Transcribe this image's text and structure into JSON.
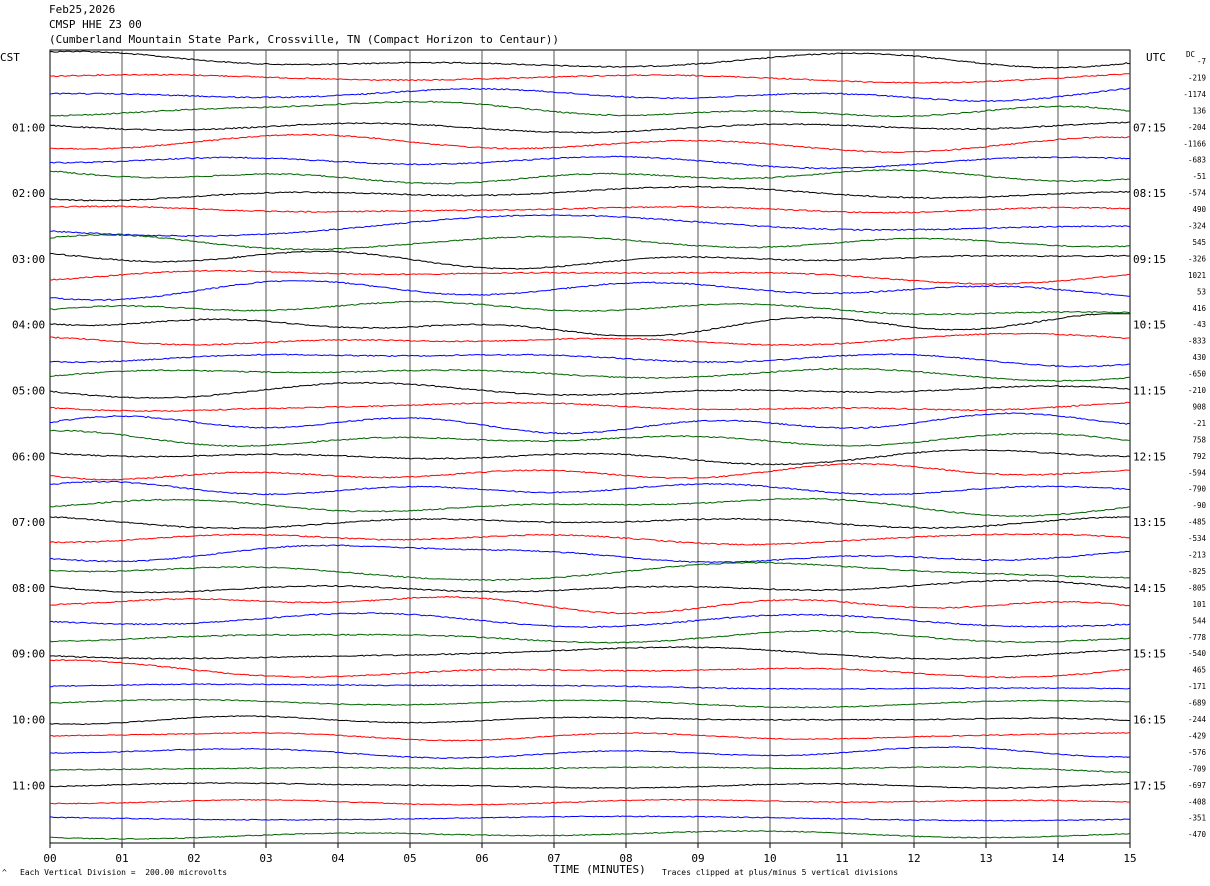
{
  "header": {
    "date": "Feb25,2026",
    "channel": "CMSP HHE Z3 00",
    "station": "(Cumberland Mountain State Park, Crossville, TN (Compact Horizon to Centaur))"
  },
  "labels": {
    "left_zone": "CST",
    "right_zone": "UTC",
    "dc": "DC",
    "xlabel": "TIME (MINUTES)",
    "scale_note": "Each Vertical Division =  200.00 microvolts",
    "clip_note": "Traces clipped at plus/minus 5 vertical divisions",
    "corner_mark": "^"
  },
  "colors": {
    "trace_cycle": [
      "#000000",
      "#ff0000",
      "#0000ff",
      "#006400"
    ],
    "grid": "#000000",
    "background": "#ffffff"
  },
  "chart_data": {
    "type": "line",
    "title": "CMSP HHE Z3 00",
    "xlabel": "TIME (MINUTES)",
    "x_ticks": [
      "00",
      "01",
      "02",
      "03",
      "04",
      "05",
      "06",
      "07",
      "08",
      "09",
      "10",
      "11",
      "12",
      "13",
      "14",
      "15"
    ],
    "xlim": [
      0,
      15
    ],
    "hour_labels_left": [
      "01:00",
      "02:00",
      "03:00",
      "04:00",
      "05:00",
      "06:00",
      "07:00",
      "08:00",
      "09:00",
      "10:00",
      "11:00"
    ],
    "hour_labels_right": [
      "07:15",
      "08:15",
      "09:15",
      "10:15",
      "11:15",
      "12:15",
      "13:15",
      "14:15",
      "15:15",
      "16:15",
      "17:15"
    ],
    "trace_count": 48,
    "dc_offsets": [
      "-7",
      "-219",
      "-1174",
      "136",
      "-204",
      "-1166",
      "-683",
      "-51",
      "-574",
      "490",
      "-324",
      "545",
      "-326",
      "1021",
      "53",
      "416",
      "-43",
      "-833",
      "430",
      "-650",
      "-210",
      "908",
      "-21",
      "758",
      "792",
      "-594",
      "-790",
      "-90",
      "-485",
      "-534",
      "-213",
      "-825",
      "-805",
      "101",
      "544",
      "-778",
      "-540",
      "465",
      "-171",
      "-689",
      "-244",
      "-429",
      "-576",
      "-709",
      "-697",
      "-408",
      "-351",
      "-470"
    ],
    "scale_microvolts_per_division": 200.0,
    "clip_divisions": 5,
    "grid": true
  }
}
